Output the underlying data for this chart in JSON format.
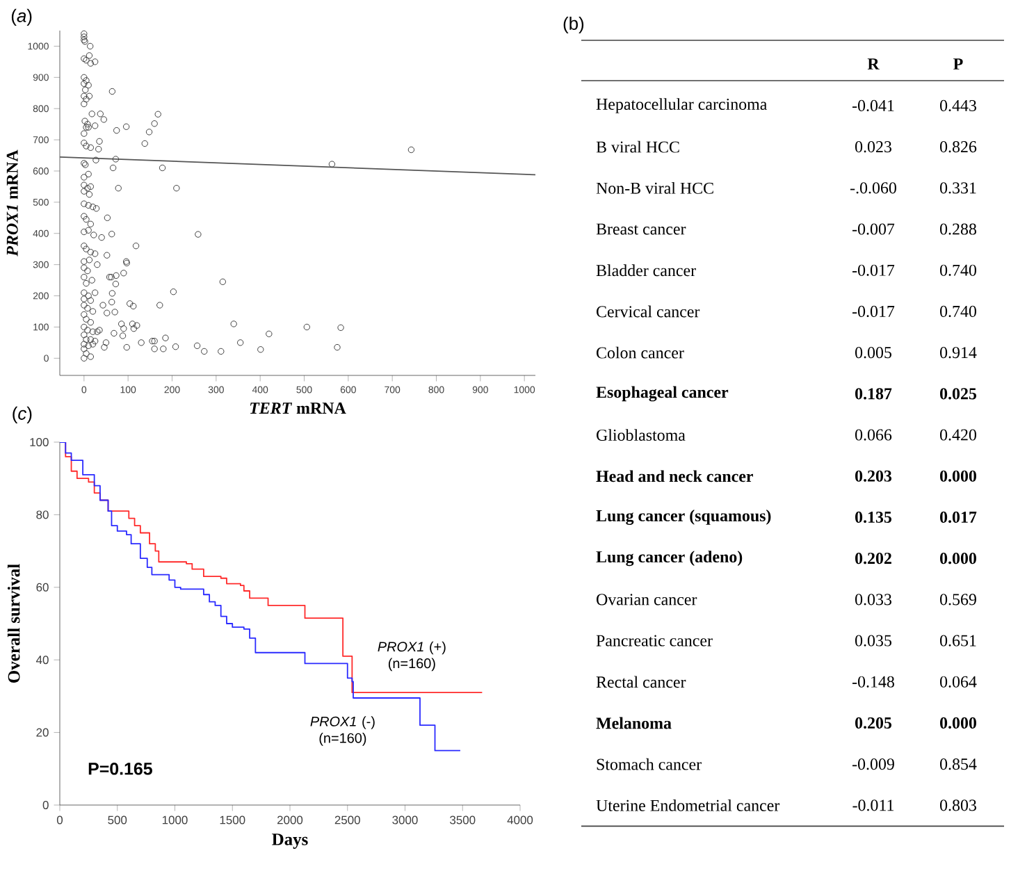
{
  "chart_data": [
    {
      "type": "scatter",
      "title": "(*a*)",
      "xlabel": "*TERT* mRNA",
      "ylabel": "*PROX1* mRNA",
      "xlim": [
        -55,
        1025
      ],
      "ylim": [
        -55,
        1050
      ],
      "xticks": [
        0,
        100,
        200,
        300,
        400,
        500,
        600,
        700,
        800,
        900,
        1000
      ],
      "yticks": [
        0,
        100,
        200,
        300,
        400,
        500,
        600,
        700,
        800,
        900,
        1000
      ],
      "series": [
        {
          "color": "#404040",
          "marker": "circle",
          "x": [
            64,
            37,
            45,
            18,
            74,
            96,
            168,
            160,
            148,
            138,
            35,
            33,
            27,
            72,
            66,
            178,
            563,
            743,
            78,
            210,
            53,
            63,
            40,
            259,
            52,
            118,
            96,
            97,
            90,
            73,
            58,
            62,
            72,
            315,
            203,
            64,
            104,
            112,
            172,
            63,
            43,
            70,
            52,
            85,
            110,
            120,
            90,
            113,
            340,
            506,
            583,
            420,
            68,
            88,
            185,
            130,
            155,
            160,
            355,
            97,
            160,
            180,
            208,
            257,
            273,
            311,
            401,
            575,
            46,
            50,
            0,
            0,
            2,
            0,
            14,
            0,
            5,
            12,
            25,
            15,
            0,
            5,
            0,
            10,
            3,
            0,
            12,
            5,
            0,
            2,
            8,
            25,
            0,
            5,
            10,
            0,
            5,
            15,
            0,
            3,
            0,
            10,
            0,
            8,
            15,
            0,
            12,
            0,
            10,
            20,
            28,
            0,
            5,
            15,
            0,
            10,
            22,
            0,
            5,
            15,
            25,
            0,
            12,
            30,
            0,
            8,
            0,
            18,
            5,
            0,
            10,
            25,
            0,
            15,
            0,
            8,
            20,
            0,
            5,
            15,
            0,
            8,
            20,
            30,
            0,
            5,
            15,
            25,
            0,
            10,
            20,
            0,
            5,
            0,
            15,
            35
          ],
          "values": [
            855,
            783,
            765,
            783,
            730,
            742,
            782,
            752,
            725,
            688,
            695,
            670,
            635,
            638,
            610,
            610,
            622,
            668,
            545,
            545,
            450,
            398,
            387,
            397,
            330,
            360,
            310,
            305,
            273,
            265,
            260,
            260,
            238,
            245,
            213,
            208,
            175,
            167,
            170,
            180,
            170,
            148,
            145,
            110,
            110,
            105,
            95,
            95,
            110,
            100,
            98,
            78,
            80,
            72,
            65,
            50,
            55,
            55,
            50,
            35,
            30,
            30,
            37,
            40,
            22,
            22,
            28,
            35,
            35,
            50,
            1040,
            1030,
            1015,
            1020,
            1000,
            960,
            955,
            970,
            950,
            945,
            900,
            890,
            880,
            875,
            860,
            840,
            840,
            830,
            815,
            760,
            750,
            745,
            720,
            740,
            740,
            690,
            680,
            675,
            625,
            620,
            580,
            590,
            555,
            545,
            550,
            535,
            525,
            495,
            490,
            485,
            480,
            455,
            445,
            430,
            405,
            410,
            395,
            360,
            350,
            340,
            335,
            310,
            315,
            300,
            290,
            280,
            260,
            250,
            240,
            210,
            200,
            210,
            190,
            185,
            170,
            160,
            150,
            140,
            125,
            115,
            100,
            90,
            85,
            85,
            75,
            60,
            60,
            55,
            45,
            40,
            45,
            30,
            15,
            0,
            5,
            90
          ]
        },
        {
          "type": "line",
          "color": "#555555",
          "x": [
            -55,
            1025
          ],
          "values": [
            645,
            588
          ]
        }
      ]
    },
    {
      "type": "other",
      "title": "(b)",
      "data_labels": true,
      "categories": [
        "Hepatocellular carcinoma",
        "B viral HCC",
        "Non-B viral HCC",
        "Breast cancer",
        "Bladder cancer",
        "Cervical cancer",
        "Colon cancer",
        "**Esophageal cancer**",
        "Glioblastoma",
        "**Head and neck cancer**",
        "**Lung cancer (squamous)**",
        "**Lung cancer (adeno)**",
        "Ovarian cancer",
        "Pancreatic cancer",
        "Rectal cancer",
        "**Melanoma**",
        "Stomach cancer",
        "Uterine Endometrial cancer"
      ],
      "series": [
        {
          "name": "R",
          "values": [
            -0.041,
            0.023,
            null,
            -0.007,
            -0.017,
            -0.017,
            0.005,
            0.187,
            0.066,
            0.203,
            0.135,
            0.202,
            0.033,
            0.035,
            -0.148,
            0.205,
            -0.009,
            -0.011
          ],
          "value_labels": [
            "-0.041",
            "0.023",
            "-.0.060",
            "-0.007",
            "-0.017",
            "-0.017",
            "0.005",
            "0.187",
            "0.066",
            "0.203",
            "0.135",
            "0.202",
            "0.033",
            "0.035",
            "-0.148",
            "0.205",
            "-0.009",
            "-0.011"
          ]
        },
        {
          "name": "P",
          "values": [
            0.443,
            0.826,
            0.331,
            0.288,
            0.74,
            0.74,
            0.914,
            0.025,
            0.42,
            0.0,
            0.017,
            0.0,
            0.569,
            0.651,
            0.064,
            0.0,
            0.854,
            0.803
          ],
          "value_labels": [
            "0.443",
            "0.826",
            "0.331",
            "0.288",
            "0.740",
            "0.740",
            "0.914",
            "0.025",
            "0.420",
            "0.000",
            "0.017",
            "0.000",
            "0.569",
            "0.651",
            "0.064",
            "0.000",
            "0.854",
            "0.803"
          ]
        }
      ]
    },
    {
      "type": "step",
      "title": "(*c*)",
      "xlabel": "Days",
      "ylabel": "Overall survival",
      "xlim": [
        0,
        4000
      ],
      "ylim": [
        0,
        100
      ],
      "xticks": [
        0,
        500,
        1000,
        1500,
        2000,
        2500,
        3000,
        3500,
        4000
      ],
      "yticks": [
        0,
        20,
        40,
        60,
        80,
        100
      ],
      "annotations": [
        "P=0.165"
      ],
      "series": [
        {
          "name": "*PROX1* (+) (n=160)",
          "color": "#ff2a2a",
          "x": [
            0,
            50,
            100,
            150,
            250,
            300,
            350,
            420,
            560,
            600,
            650,
            700,
            780,
            830,
            860,
            1000,
            1100,
            1150,
            1250,
            1400,
            1450,
            1570,
            1600,
            1650,
            1800,
            1810,
            2120,
            2130,
            2450,
            2460,
            2530,
            2540,
            3670
          ],
          "values": [
            100,
            96,
            92,
            90,
            89,
            86,
            84,
            81,
            81,
            79,
            77,
            75,
            72,
            70,
            67,
            67,
            66.5,
            65,
            63,
            62.5,
            61,
            60.5,
            59,
            57,
            57,
            55,
            55,
            51.5,
            51.5,
            41,
            41,
            31,
            31
          ]
        },
        {
          "name": "*PROX1* (-) (n=160)",
          "color": "#2a2aff",
          "x": [
            0,
            50,
            100,
            200,
            300,
            350,
            420,
            450,
            500,
            580,
            620,
            700,
            760,
            800,
            900,
            950,
            1000,
            1050,
            1200,
            1250,
            1300,
            1350,
            1400,
            1450,
            1500,
            1600,
            1650,
            1700,
            2120,
            2130,
            2480,
            2500,
            2540,
            2550,
            3120,
            3130,
            3250,
            3260,
            3480
          ],
          "values": [
            100,
            97,
            95,
            91,
            88,
            84,
            81,
            77,
            75.5,
            74.5,
            72,
            68,
            65.5,
            63.5,
            63.5,
            62,
            60,
            59.5,
            59.5,
            58,
            56,
            55,
            52,
            50,
            49,
            48.5,
            46,
            42,
            42,
            39,
            39,
            35,
            34,
            29.5,
            29.5,
            22,
            22,
            15,
            15
          ]
        }
      ]
    }
  ]
}
